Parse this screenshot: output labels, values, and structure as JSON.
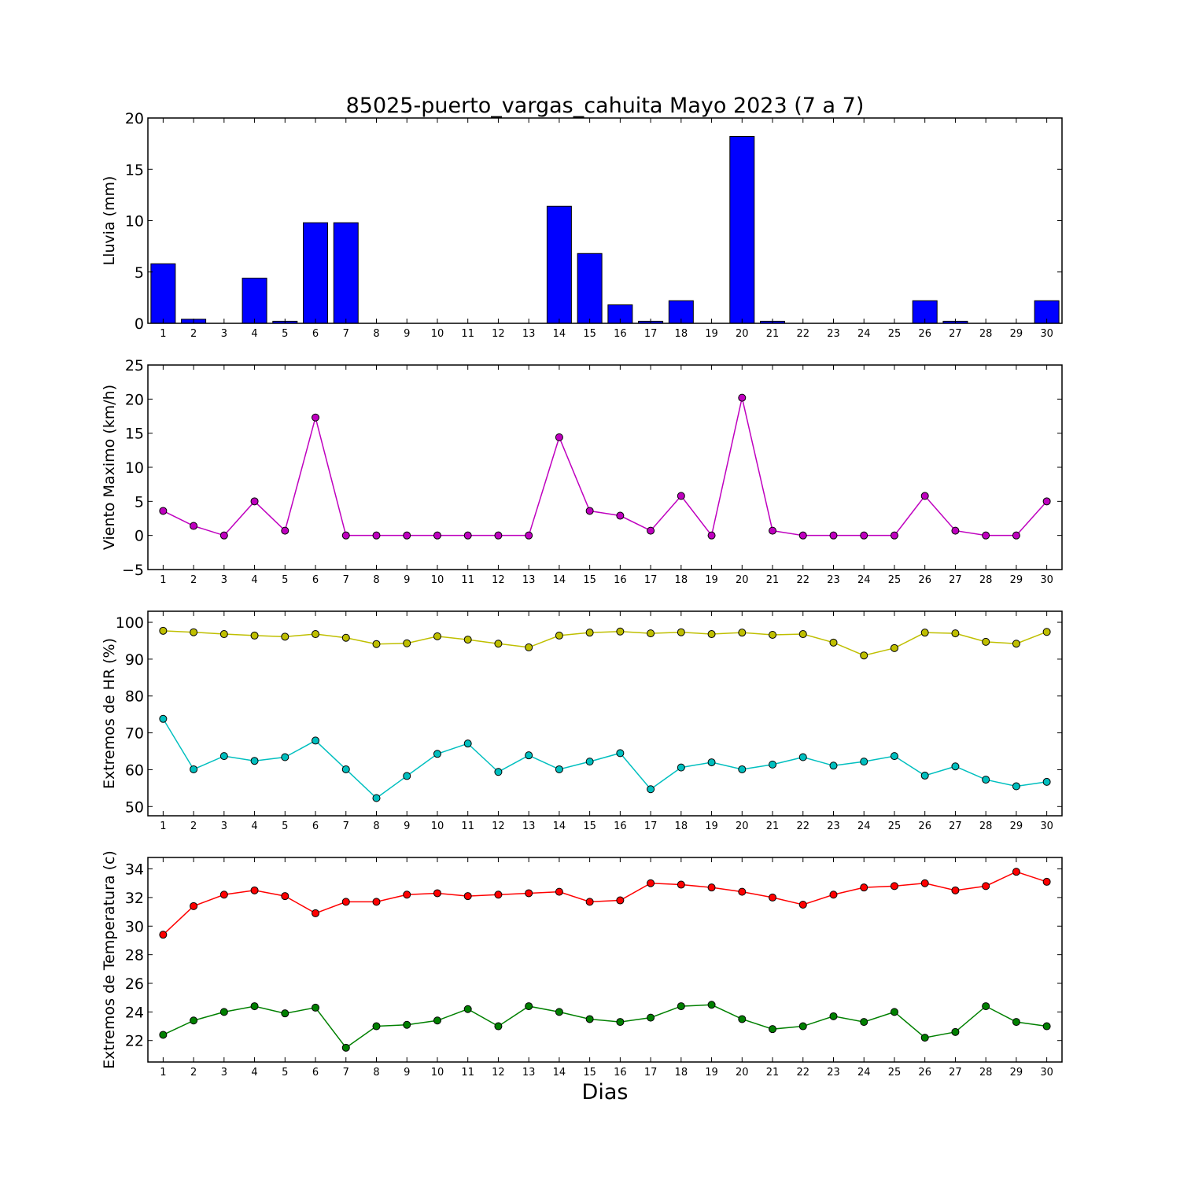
{
  "title": "85025-puerto_vargas_cahuita Mayo 2023  (7 a 7)",
  "xlabel": "Dias",
  "chart_data": [
    {
      "type": "bar",
      "ylabel": "Lluvia (mm)",
      "ylim": [
        0,
        20
      ],
      "yticks": [
        0,
        5,
        10,
        15,
        20
      ],
      "x": [
        1,
        2,
        3,
        4,
        5,
        6,
        7,
        8,
        9,
        10,
        11,
        12,
        13,
        14,
        15,
        16,
        17,
        18,
        19,
        20,
        21,
        22,
        23,
        24,
        25,
        26,
        27,
        28,
        29,
        30
      ],
      "series": [
        {
          "color": "#0000ff",
          "values": [
            5.8,
            0.4,
            0,
            4.4,
            0.2,
            9.8,
            9.8,
            0,
            0,
            0,
            0,
            0,
            0,
            11.4,
            6.8,
            1.8,
            0.2,
            2.2,
            0,
            18.2,
            0.2,
            0,
            0,
            0,
            0,
            2.2,
            0.2,
            0,
            0,
            2.2
          ]
        }
      ]
    },
    {
      "type": "line",
      "ylabel": "Viento Maximo (km/h)",
      "ylim": [
        -5,
        25
      ],
      "yticks": [
        -5,
        0,
        5,
        10,
        15,
        20,
        25
      ],
      "x": [
        1,
        2,
        3,
        4,
        5,
        6,
        7,
        8,
        9,
        10,
        11,
        12,
        13,
        14,
        15,
        16,
        17,
        18,
        19,
        20,
        21,
        22,
        23,
        24,
        25,
        26,
        27,
        28,
        29,
        30
      ],
      "series": [
        {
          "color": "#bf00bf",
          "values": [
            3.6,
            1.4,
            0,
            5,
            0.7,
            17.3,
            0,
            0,
            0,
            0,
            0,
            0,
            0,
            14.4,
            3.6,
            2.9,
            0.7,
            5.8,
            0,
            20.2,
            0.7,
            0,
            0,
            0,
            0,
            5.8,
            0.7,
            0,
            0,
            5
          ]
        }
      ]
    },
    {
      "type": "line",
      "ylabel": "Extremos de HR (%)",
      "ylim": [
        47.5,
        103
      ],
      "yticks": [
        50,
        60,
        70,
        80,
        90,
        100
      ],
      "x": [
        1,
        2,
        3,
        4,
        5,
        6,
        7,
        8,
        9,
        10,
        11,
        12,
        13,
        14,
        15,
        16,
        17,
        18,
        19,
        20,
        21,
        22,
        23,
        24,
        25,
        26,
        27,
        28,
        29,
        30
      ],
      "series": [
        {
          "color": "#bfbf00",
          "values": [
            97.7,
            97.3,
            96.8,
            96.4,
            96.1,
            96.8,
            95.8,
            94.1,
            94.3,
            96.2,
            95.3,
            94.2,
            93.2,
            96.4,
            97.2,
            97.5,
            97,
            97.3,
            96.8,
            97.2,
            96.6,
            96.8,
            94.5,
            91,
            93,
            97.2,
            97,
            94.7,
            94.2,
            97.4
          ]
        },
        {
          "color": "#00bfbf",
          "values": [
            73.8,
            60.1,
            63.7,
            62.4,
            63.4,
            67.9,
            60.1,
            52.3,
            58.3,
            64.3,
            67.1,
            59.4,
            63.9,
            60.1,
            62.2,
            64.5,
            54.7,
            60.6,
            62,
            60.1,
            61.4,
            63.4,
            61.1,
            62.2,
            63.7,
            58.4,
            60.9,
            57.3,
            55.5,
            56.7
          ]
        }
      ]
    },
    {
      "type": "line",
      "ylabel": "Extremos de Temperatura (c)",
      "ylim": [
        20.5,
        34.8
      ],
      "yticks": [
        22,
        24,
        26,
        28,
        30,
        32,
        34
      ],
      "x": [
        1,
        2,
        3,
        4,
        5,
        6,
        7,
        8,
        9,
        10,
        11,
        12,
        13,
        14,
        15,
        16,
        17,
        18,
        19,
        20,
        21,
        22,
        23,
        24,
        25,
        26,
        27,
        28,
        29,
        30
      ],
      "series": [
        {
          "color": "#ff0000",
          "values": [
            29.4,
            31.4,
            32.2,
            32.5,
            32.1,
            30.9,
            31.7,
            31.7,
            32.2,
            32.3,
            32.1,
            32.2,
            32.3,
            32.4,
            31.7,
            31.8,
            33,
            32.9,
            32.7,
            32.4,
            32,
            31.5,
            32.2,
            32.7,
            32.8,
            33,
            32.5,
            32.8,
            33.8,
            33.1
          ]
        },
        {
          "color": "#008000",
          "values": [
            22.4,
            23.4,
            24,
            24.4,
            23.9,
            24.3,
            21.5,
            23,
            23.1,
            23.4,
            24.2,
            23,
            24.4,
            24,
            23.5,
            23.3,
            23.6,
            24.4,
            24.5,
            23.5,
            22.8,
            23,
            23.7,
            23.3,
            24,
            22.2,
            22.6,
            24.4,
            23.3,
            23
          ]
        }
      ]
    }
  ]
}
